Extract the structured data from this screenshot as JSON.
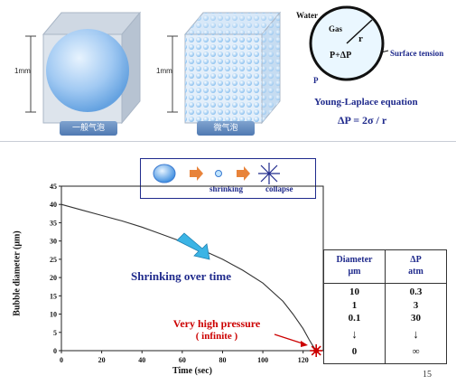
{
  "top": {
    "scale_label": "1mm",
    "big_bubble_caption": "一般气泡",
    "micro_bubble_caption": "微气泡",
    "bubble_water": "Water",
    "bubble_gas": "Gas",
    "bubble_r": "r",
    "bubble_inner": "P+ΔP",
    "bubble_p": "P",
    "surface_tension": "Surface tension",
    "equation_title": "Young-Laplace equation",
    "equation": "ΔP = 2σ / r"
  },
  "legend_box": {
    "shrinking": "shrinking",
    "collapse": "collapse"
  },
  "chart_data": {
    "type": "line",
    "xlabel": "Time (sec)",
    "ylabel": "Bubble diameter (μm)",
    "xlim": [
      0,
      130
    ],
    "ylim": [
      0,
      45
    ],
    "xticks": [
      0,
      20,
      40,
      60,
      80,
      100,
      120
    ],
    "yticks": [
      0,
      5,
      10,
      15,
      20,
      25,
      30,
      35,
      40,
      45
    ],
    "series": [
      {
        "x": [
          0,
          10,
          20,
          30,
          40,
          50,
          60,
          70,
          80,
          90,
          100,
          110,
          115,
          120,
          123,
          125,
          126.5
        ],
        "y": [
          40,
          38.5,
          37,
          35.5,
          33.8,
          31.8,
          29.8,
          27.5,
          25,
          22,
          18.5,
          13.5,
          10,
          6,
          3,
          1.2,
          0
        ]
      }
    ],
    "annotations": {
      "shrinking": "Shrinking over time",
      "pressure_line1": "Very high pressure",
      "pressure_line2": "( infinite )"
    }
  },
  "table": {
    "headers": [
      [
        "Diameter",
        "μm"
      ],
      [
        "ΔP",
        "atm"
      ]
    ],
    "rows": [
      [
        "10",
        "0.3"
      ],
      [
        "1",
        "3"
      ],
      [
        "0.1",
        "30"
      ],
      [
        "↓",
        "↓"
      ],
      [
        "0",
        "∞"
      ]
    ]
  },
  "page_number": "15",
  "colors": {
    "dark_blue": "#1f2a8c",
    "red": "#cc0000",
    "pill_blue": "#5b82b8",
    "arrow_cyan": "#3bb4e5"
  }
}
